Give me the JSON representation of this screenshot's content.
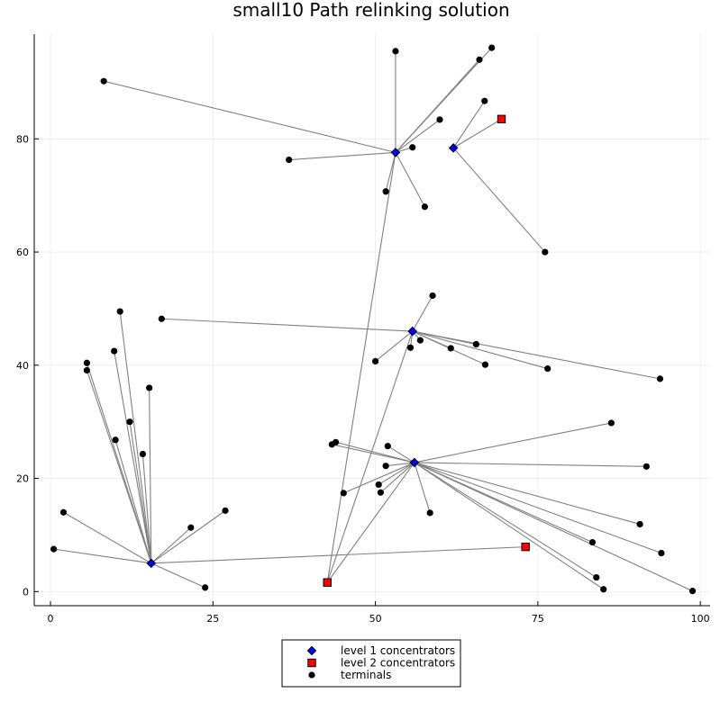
{
  "chart_data": {
    "type": "scatter",
    "title": "small10 Path relinking solution",
    "xlabel": "",
    "ylabel": "",
    "xlim": [
      -2.5,
      101.5
    ],
    "ylim": [
      -2.5,
      98.5
    ],
    "xticks": [
      0,
      25,
      50,
      75,
      100
    ],
    "yticks": [
      0,
      20,
      40,
      60,
      80
    ],
    "grid": true,
    "legend_position": "bottom",
    "colors": {
      "level1": "#0000ff",
      "level2": "#ff0000",
      "terminal": "#000000",
      "edge": "#808080"
    },
    "series": [
      {
        "name": "level 1 concentrators",
        "marker": "diamond",
        "points": [
          [
            15.5,
            5.0
          ],
          [
            56.0,
            22.8
          ],
          [
            55.7,
            46.0
          ],
          [
            53.1,
            77.6
          ],
          [
            62.0,
            78.4
          ]
        ]
      },
      {
        "name": "level 2 concentrators",
        "marker": "square",
        "points": [
          [
            42.6,
            1.6
          ],
          [
            73.1,
            7.9
          ],
          [
            69.4,
            83.5
          ]
        ]
      },
      {
        "name": "terminals",
        "marker": "circle",
        "points": [
          [
            0.5,
            7.5
          ],
          [
            2.0,
            14.0
          ],
          [
            23.8,
            0.7
          ],
          [
            21.6,
            11.3
          ],
          [
            26.9,
            14.3
          ],
          [
            5.6,
            40.4
          ],
          [
            5.6,
            39.1
          ],
          [
            9.8,
            42.5
          ],
          [
            10.0,
            26.8
          ],
          [
            10.7,
            49.5
          ],
          [
            12.2,
            30.0
          ],
          [
            14.2,
            24.3
          ],
          [
            15.2,
            36.0
          ],
          [
            17.1,
            48.2
          ],
          [
            43.3,
            26.0
          ],
          [
            43.9,
            26.4
          ],
          [
            45.1,
            17.4
          ],
          [
            50.5,
            18.9
          ],
          [
            50.8,
            17.5
          ],
          [
            51.6,
            22.2
          ],
          [
            51.9,
            25.7
          ],
          [
            58.4,
            13.9
          ],
          [
            86.3,
            29.8
          ],
          [
            91.7,
            22.1
          ],
          [
            90.7,
            11.9
          ],
          [
            83.4,
            8.7
          ],
          [
            94.0,
            6.8
          ],
          [
            84.0,
            2.5
          ],
          [
            85.1,
            0.4
          ],
          [
            98.8,
            0.1
          ],
          [
            50.0,
            40.7
          ],
          [
            55.4,
            43.1
          ],
          [
            56.9,
            44.4
          ],
          [
            58.8,
            52.3
          ],
          [
            61.6,
            43.0
          ],
          [
            65.5,
            43.7
          ],
          [
            66.9,
            40.1
          ],
          [
            76.5,
            39.4
          ],
          [
            93.8,
            37.6
          ],
          [
            8.2,
            90.2
          ],
          [
            36.7,
            76.3
          ],
          [
            51.6,
            70.7
          ],
          [
            53.1,
            95.5
          ],
          [
            55.7,
            78.5
          ],
          [
            57.6,
            68.0
          ],
          [
            59.9,
            83.4
          ],
          [
            66.0,
            94.0
          ],
          [
            67.9,
            96.1
          ],
          [
            66.8,
            86.7
          ],
          [
            76.1,
            60.0
          ]
        ]
      }
    ],
    "edges": [
      [
        [
          15.5,
          5.0
        ],
        [
          0.5,
          7.5
        ]
      ],
      [
        [
          15.5,
          5.0
        ],
        [
          2.0,
          14.0
        ]
      ],
      [
        [
          15.5,
          5.0
        ],
        [
          23.8,
          0.7
        ]
      ],
      [
        [
          15.5,
          5.0
        ],
        [
          21.6,
          11.3
        ]
      ],
      [
        [
          15.5,
          5.0
        ],
        [
          26.9,
          14.3
        ]
      ],
      [
        [
          15.5,
          5.0
        ],
        [
          5.6,
          40.4
        ]
      ],
      [
        [
          15.5,
          5.0
        ],
        [
          5.6,
          39.1
        ]
      ],
      [
        [
          15.5,
          5.0
        ],
        [
          9.8,
          42.5
        ]
      ],
      [
        [
          15.5,
          5.0
        ],
        [
          10.0,
          26.8
        ]
      ],
      [
        [
          15.5,
          5.0
        ],
        [
          10.7,
          49.5
        ]
      ],
      [
        [
          15.5,
          5.0
        ],
        [
          12.2,
          30.0
        ]
      ],
      [
        [
          15.5,
          5.0
        ],
        [
          14.2,
          24.3
        ]
      ],
      [
        [
          15.5,
          5.0
        ],
        [
          15.2,
          36.0
        ]
      ],
      [
        [
          15.5,
          5.0
        ],
        [
          73.1,
          7.9
        ]
      ],
      [
        [
          56.0,
          22.8
        ],
        [
          42.6,
          1.6
        ]
      ],
      [
        [
          56.0,
          22.8
        ],
        [
          43.3,
          26.0
        ]
      ],
      [
        [
          56.0,
          22.8
        ],
        [
          43.9,
          26.4
        ]
      ],
      [
        [
          56.0,
          22.8
        ],
        [
          45.1,
          17.4
        ]
      ],
      [
        [
          56.0,
          22.8
        ],
        [
          50.5,
          18.9
        ]
      ],
      [
        [
          56.0,
          22.8
        ],
        [
          50.8,
          17.5
        ]
      ],
      [
        [
          56.0,
          22.8
        ],
        [
          51.6,
          22.2
        ]
      ],
      [
        [
          56.0,
          22.8
        ],
        [
          51.9,
          25.7
        ]
      ],
      [
        [
          56.0,
          22.8
        ],
        [
          58.4,
          13.9
        ]
      ],
      [
        [
          56.0,
          22.8
        ],
        [
          86.3,
          29.8
        ]
      ],
      [
        [
          56.0,
          22.8
        ],
        [
          91.7,
          22.1
        ]
      ],
      [
        [
          56.0,
          22.8
        ],
        [
          90.7,
          11.9
        ]
      ],
      [
        [
          56.0,
          22.8
        ],
        [
          83.4,
          8.7
        ]
      ],
      [
        [
          56.0,
          22.8
        ],
        [
          94.0,
          6.8
        ]
      ],
      [
        [
          56.0,
          22.8
        ],
        [
          84.0,
          2.5
        ]
      ],
      [
        [
          56.0,
          22.8
        ],
        [
          85.1,
          0.4
        ]
      ],
      [
        [
          56.0,
          22.8
        ],
        [
          98.8,
          0.1
        ]
      ],
      [
        [
          55.7,
          46.0
        ],
        [
          42.6,
          1.6
        ]
      ],
      [
        [
          55.7,
          46.0
        ],
        [
          17.1,
          48.2
        ]
      ],
      [
        [
          55.7,
          46.0
        ],
        [
          50.0,
          40.7
        ]
      ],
      [
        [
          55.7,
          46.0
        ],
        [
          55.4,
          43.1
        ]
      ],
      [
        [
          55.7,
          46.0
        ],
        [
          56.9,
          44.4
        ]
      ],
      [
        [
          55.7,
          46.0
        ],
        [
          58.8,
          52.3
        ]
      ],
      [
        [
          55.7,
          46.0
        ],
        [
          61.6,
          43.0
        ]
      ],
      [
        [
          55.7,
          46.0
        ],
        [
          65.5,
          43.7
        ]
      ],
      [
        [
          55.7,
          46.0
        ],
        [
          66.9,
          40.1
        ]
      ],
      [
        [
          55.7,
          46.0
        ],
        [
          76.5,
          39.4
        ]
      ],
      [
        [
          55.7,
          46.0
        ],
        [
          93.8,
          37.6
        ]
      ],
      [
        [
          53.1,
          77.6
        ],
        [
          42.6,
          1.6
        ]
      ],
      [
        [
          53.1,
          77.6
        ],
        [
          8.2,
          90.2
        ]
      ],
      [
        [
          53.1,
          77.6
        ],
        [
          36.7,
          76.3
        ]
      ],
      [
        [
          53.1,
          77.6
        ],
        [
          51.6,
          70.7
        ]
      ],
      [
        [
          53.1,
          77.6
        ],
        [
          53.1,
          95.5
        ]
      ],
      [
        [
          53.1,
          77.6
        ],
        [
          55.7,
          78.5
        ]
      ],
      [
        [
          53.1,
          77.6
        ],
        [
          57.6,
          68.0
        ]
      ],
      [
        [
          53.1,
          77.6
        ],
        [
          59.9,
          83.4
        ]
      ],
      [
        [
          53.1,
          77.6
        ],
        [
          66.0,
          94.0
        ]
      ],
      [
        [
          53.1,
          77.6
        ],
        [
          67.9,
          96.1
        ]
      ],
      [
        [
          62.0,
          78.4
        ],
        [
          69.4,
          83.5
        ]
      ],
      [
        [
          62.0,
          78.4
        ],
        [
          66.8,
          86.7
        ]
      ],
      [
        [
          62.0,
          78.4
        ],
        [
          76.1,
          60.0
        ]
      ]
    ]
  }
}
